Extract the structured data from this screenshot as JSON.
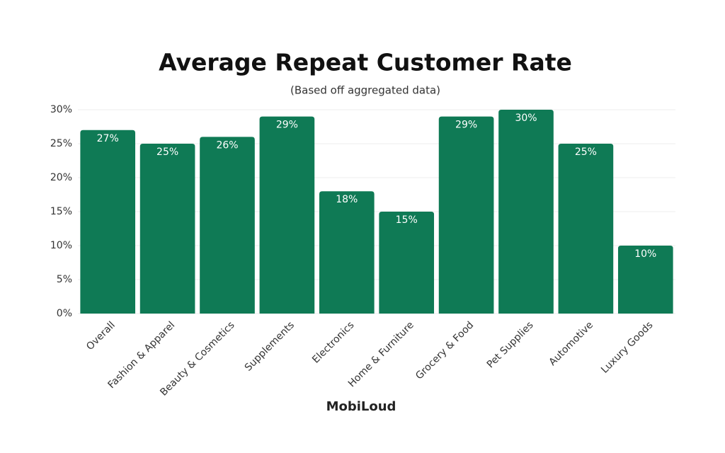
{
  "chart_data": {
    "type": "bar",
    "title": "Average Repeat Customer Rate",
    "subtitle": "(Based off aggregated data)",
    "categories": [
      "Overall",
      "Fashion & Apparel",
      "Beauty & Cosmetics",
      "Supplements",
      "Electronics",
      "Home & Furniture",
      "Grocery & Food",
      "Pet Supplies",
      "Automotive",
      "Luxury Goods"
    ],
    "values": [
      27,
      25,
      26,
      29,
      18,
      15,
      29,
      30,
      25,
      10
    ],
    "value_labels": [
      "27%",
      "25%",
      "26%",
      "29%",
      "18%",
      "15%",
      "29%",
      "30%",
      "25%",
      "10%"
    ],
    "color": "#0f7a55",
    "ylim": [
      0,
      30
    ],
    "yticks": [
      {
        "value": 0,
        "label": "0%"
      },
      {
        "value": 5,
        "label": "5%"
      },
      {
        "value": 10,
        "label": "10%"
      },
      {
        "value": 15,
        "label": "15%"
      },
      {
        "value": 20,
        "label": "20%"
      },
      {
        "value": 25,
        "label": "25%"
      },
      {
        "value": 30,
        "label": "30%"
      }
    ],
    "grid": true,
    "footer": "MobiLoud"
  }
}
